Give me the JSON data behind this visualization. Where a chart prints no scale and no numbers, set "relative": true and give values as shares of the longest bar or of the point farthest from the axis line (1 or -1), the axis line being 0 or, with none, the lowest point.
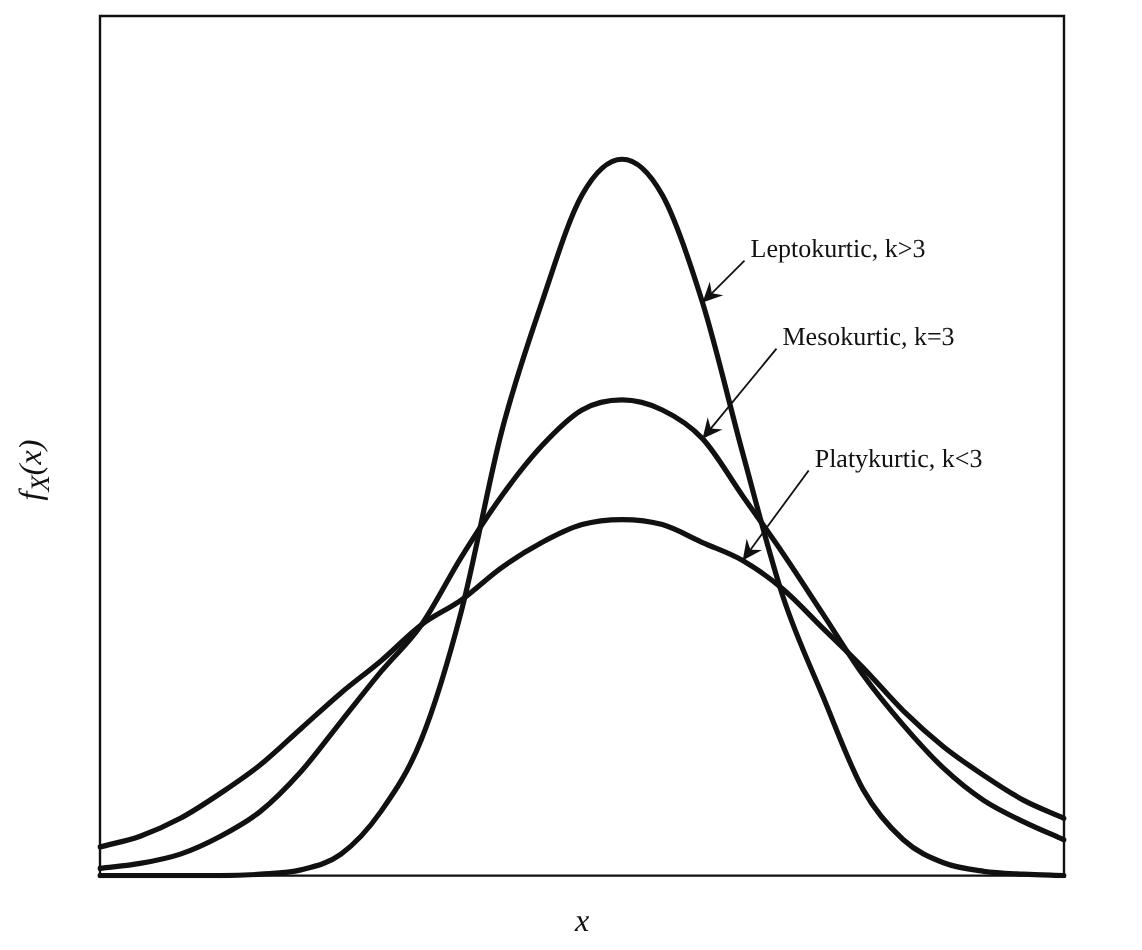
{
  "chart_data": {
    "type": "line",
    "relative": true,
    "xlabel": "x",
    "ylabel": "f$_{X}$(x)",
    "categories": [
      null,
      null,
      null,
      null,
      null,
      null,
      null,
      null,
      null,
      null,
      null,
      null,
      null,
      null,
      null,
      null,
      null,
      null,
      null,
      null,
      null,
      null,
      null,
      null,
      null
    ],
    "series": [
      {
        "name": "Leptokurtic, k>3",
        "color": "#111111",
        "values": [
          0,
          0,
          0,
          0,
          0.002,
          0.008,
          0.03,
          0.09,
          0.19,
          0.37,
          0.62,
          0.8,
          0.95,
          1,
          0.95,
          0.8,
          0.59,
          0.39,
          0.25,
          0.12,
          0.05,
          0.018,
          0.006,
          0.002,
          0
        ]
      },
      {
        "name": "Mesokurtic, k=3",
        "color": "#111111",
        "values": [
          0.01,
          0.017,
          0.03,
          0.055,
          0.09,
          0.145,
          0.215,
          0.285,
          0.35,
          0.445,
          0.53,
          0.6,
          0.65,
          0.664,
          0.65,
          0.61,
          0.53,
          0.45,
          0.365,
          0.28,
          0.21,
          0.15,
          0.105,
          0.075,
          0.05
        ]
      },
      {
        "name": "Platykurtic, k<3",
        "color": "#111111",
        "values": [
          0.04,
          0.055,
          0.08,
          0.115,
          0.155,
          0.205,
          0.255,
          0.3,
          0.35,
          0.385,
          0.43,
          0.465,
          0.49,
          0.497,
          0.49,
          0.465,
          0.44,
          0.4,
          0.345,
          0.29,
          0.23,
          0.18,
          0.14,
          0.105,
          0.08
        ]
      }
    ],
    "legend": false,
    "grid": false,
    "marker": "none",
    "line_style": "solid",
    "tick_labels": false
  }
}
